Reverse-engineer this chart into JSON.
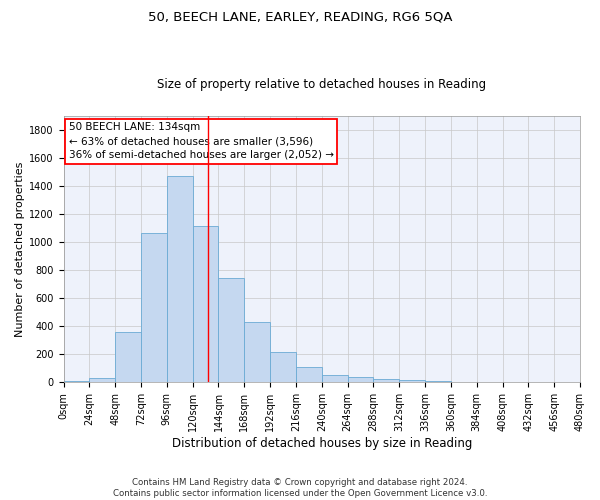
{
  "title1": "50, BEECH LANE, EARLEY, READING, RG6 5QA",
  "title2": "Size of property relative to detached houses in Reading",
  "xlabel": "Distribution of detached houses by size in Reading",
  "ylabel": "Number of detached properties",
  "bar_color": "#c5d8f0",
  "bar_edge_color": "#6aaad4",
  "background_color": "#eef2fb",
  "grid_color": "#c8c8c8",
  "bin_edges": [
    0,
    24,
    48,
    72,
    96,
    120,
    144,
    168,
    192,
    216,
    240,
    264,
    288,
    312,
    336,
    360,
    384,
    408,
    432,
    456,
    480
  ],
  "bar_heights": [
    10,
    33,
    362,
    1062,
    1471,
    1115,
    745,
    433,
    220,
    108,
    50,
    42,
    28,
    20,
    10,
    5,
    3,
    2,
    1,
    1
  ],
  "property_line_x": 134,
  "annotation_line1": "50 BEECH LANE: 134sqm",
  "annotation_line2": "← 63% of detached houses are smaller (3,596)",
  "annotation_line3": "36% of semi-detached houses are larger (2,052) →",
  "ylim": [
    0,
    1900
  ],
  "yticks": [
    0,
    200,
    400,
    600,
    800,
    1000,
    1200,
    1400,
    1600,
    1800
  ],
  "xtick_labels": [
    "0sqm",
    "24sqm",
    "48sqm",
    "72sqm",
    "96sqm",
    "120sqm",
    "144sqm",
    "168sqm",
    "192sqm",
    "216sqm",
    "240sqm",
    "264sqm",
    "288sqm",
    "312sqm",
    "336sqm",
    "360sqm",
    "384sqm",
    "408sqm",
    "432sqm",
    "456sqm",
    "480sqm"
  ],
  "footnote1": "Contains HM Land Registry data © Crown copyright and database right 2024.",
  "footnote2": "Contains public sector information licensed under the Open Government Licence v3.0.",
  "title1_fontsize": 9.5,
  "title2_fontsize": 8.5,
  "xlabel_fontsize": 8.5,
  "ylabel_fontsize": 8,
  "tick_fontsize": 7,
  "annotation_fontsize": 7.5,
  "footnote_fontsize": 6.2
}
